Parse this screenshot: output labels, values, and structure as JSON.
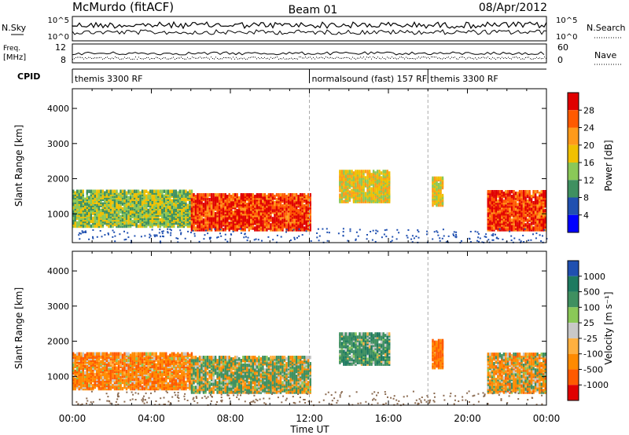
{
  "header": {
    "station": "McMurdo (fitACF)",
    "beam": "Beam 01",
    "date": "08/Apr/2012"
  },
  "strip_labels": {
    "nsky": "N.Sky",
    "nsearch": "N.Search",
    "freq_line1": "Freq.",
    "freq_line2": "[MHz]",
    "nave": "Nave",
    "cpid": "CPID",
    "nsky_ticks": [
      "10^5",
      "10^0"
    ],
    "nsearch_ticks": [
      "10^5",
      "10^0"
    ],
    "freq_ticks": [
      "12",
      "8"
    ],
    "nave_ticks": [
      "60",
      "0"
    ]
  },
  "cpid_segments": [
    {
      "label": "themis 3300 RF",
      "start_h": 0
    },
    {
      "label": "normalsound (fast) 157 RF",
      "start_h": 12
    },
    {
      "label": "themis 3300 RF",
      "start_h": 18
    }
  ],
  "chart_data": [
    {
      "type": "heatmap",
      "panel": "power",
      "ylabel": "Slant Range [km]",
      "ylim": [
        180,
        4560
      ],
      "yticks": [
        "1000",
        "2000",
        "3000",
        "4000"
      ],
      "xlim_h": [
        0,
        24
      ],
      "colorbar": {
        "label": "Power [dB]",
        "ticks": [
          "28",
          "24",
          "20",
          "16",
          "12",
          "8",
          "4"
        ],
        "colors": [
          "#e00000",
          "#ff5a00",
          "#ff9a1a",
          "#f0c000",
          "#8ac858",
          "#3f9060",
          "#2050b0",
          "#0000ff"
        ]
      },
      "features": [
        {
          "t0": 0,
          "t1": 6,
          "r0": 600,
          "r1": 1600,
          "level_db": 12
        },
        {
          "t0": 6,
          "t1": 12,
          "r0": 500,
          "r1": 1500,
          "level_db": 26
        },
        {
          "t0": 13.5,
          "t1": 16,
          "r0": 1300,
          "r1": 2200,
          "level_db": 16
        },
        {
          "t0": 18.2,
          "t1": 18.8,
          "r0": 1200,
          "r1": 2000,
          "level_db": 16
        },
        {
          "t0": 21,
          "t1": 24,
          "r0": 500,
          "r1": 1600,
          "level_db": 26
        }
      ]
    },
    {
      "type": "heatmap",
      "panel": "velocity",
      "ylabel": "Slant Range [km]",
      "ylim": [
        180,
        4560
      ],
      "yticks": [
        "1000",
        "2000",
        "3000",
        "4000"
      ],
      "xlim_h": [
        0,
        24
      ],
      "xticks": [
        "00:00",
        "04:00",
        "08:00",
        "12:00",
        "16:00",
        "20:00",
        "00:00"
      ],
      "xlabel": "Time UT",
      "colorbar": {
        "label": "Velocity [m s⁻¹]",
        "ticks": [
          "1000",
          "500",
          "100",
          "25",
          "-25",
          "-100",
          "-500",
          "-1000"
        ],
        "colors": [
          "#2050b0",
          "#1e7a60",
          "#3f9060",
          "#8ac858",
          "#c8c8c8",
          "#ffb040",
          "#ff8a00",
          "#ff5a00",
          "#e00000"
        ]
      },
      "features": [
        {
          "t0": 0,
          "t1": 6,
          "r0": 600,
          "r1": 1600,
          "velocity_ms": -200
        },
        {
          "t0": 6,
          "t1": 12,
          "r0": 500,
          "r1": 1500,
          "velocity_ms": 50
        },
        {
          "t0": 13.5,
          "t1": 16,
          "r0": 1300,
          "r1": 2200,
          "velocity_ms": 200
        },
        {
          "t0": 18.2,
          "t1": 18.8,
          "r0": 1200,
          "r1": 2000,
          "velocity_ms": -300
        },
        {
          "t0": 21,
          "t1": 24,
          "r0": 500,
          "r1": 1600,
          "velocity_ms": -100
        }
      ]
    }
  ]
}
